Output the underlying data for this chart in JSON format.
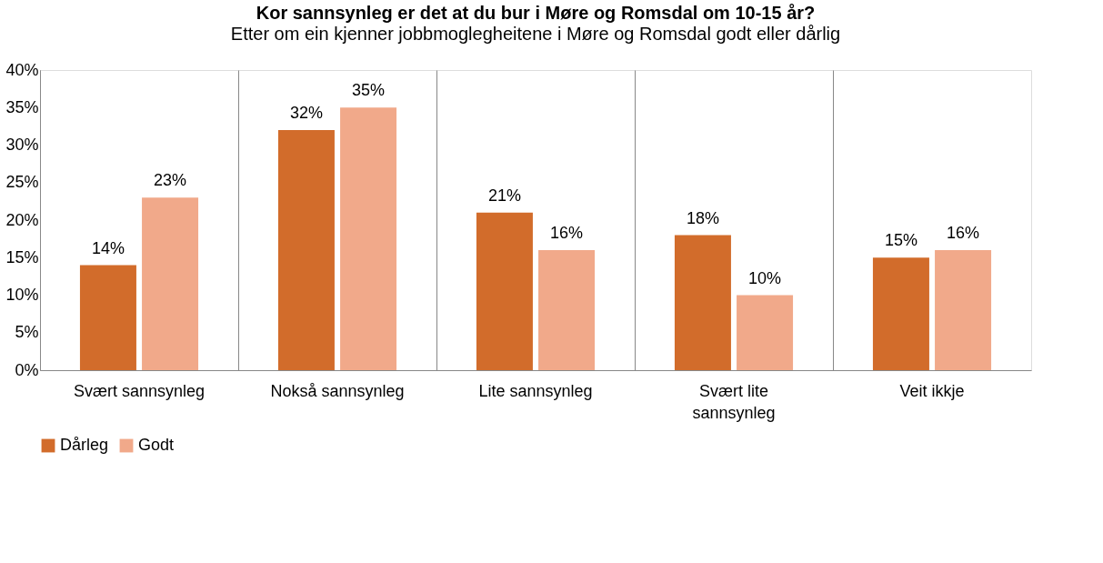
{
  "chart_data": {
    "type": "bar",
    "title": "Kor sannsynleg er det at du bur i Møre og Romsdal om 10-15 år?",
    "subtitle": "Etter om ein kjenner jobbmoglegheitene i Møre og Romsdal  godt eller dårlig",
    "categories": [
      "Svært sannsynleg",
      "Nokså sannsynleg",
      "Lite sannsynleg",
      "Svært lite sannsynleg",
      "Veit ikkje"
    ],
    "series": [
      {
        "name": "Dårleg",
        "color": "#d26c2b",
        "values": [
          14,
          32,
          21,
          18,
          15
        ],
        "value_labels": [
          "14%",
          "32%",
          "21%",
          "18%",
          "15%"
        ]
      },
      {
        "name": "Godt",
        "color": "#f1a98a",
        "values": [
          23,
          35,
          16,
          10,
          16
        ],
        "value_labels": [
          "23%",
          "35%",
          "16%",
          "10%",
          "16%"
        ]
      }
    ],
    "ylim": [
      0,
      40
    ],
    "yticks": [
      {
        "value": 0,
        "label": "0%"
      },
      {
        "value": 5,
        "label": "5%"
      },
      {
        "value": 10,
        "label": "10%"
      },
      {
        "value": 15,
        "label": "15%"
      },
      {
        "value": 20,
        "label": "20%"
      },
      {
        "value": 25,
        "label": "25%"
      },
      {
        "value": 30,
        "label": "30%"
      },
      {
        "value": 35,
        "label": "35%"
      },
      {
        "value": 40,
        "label": "40%"
      }
    ],
    "grid": "x",
    "legend": "bottom"
  }
}
